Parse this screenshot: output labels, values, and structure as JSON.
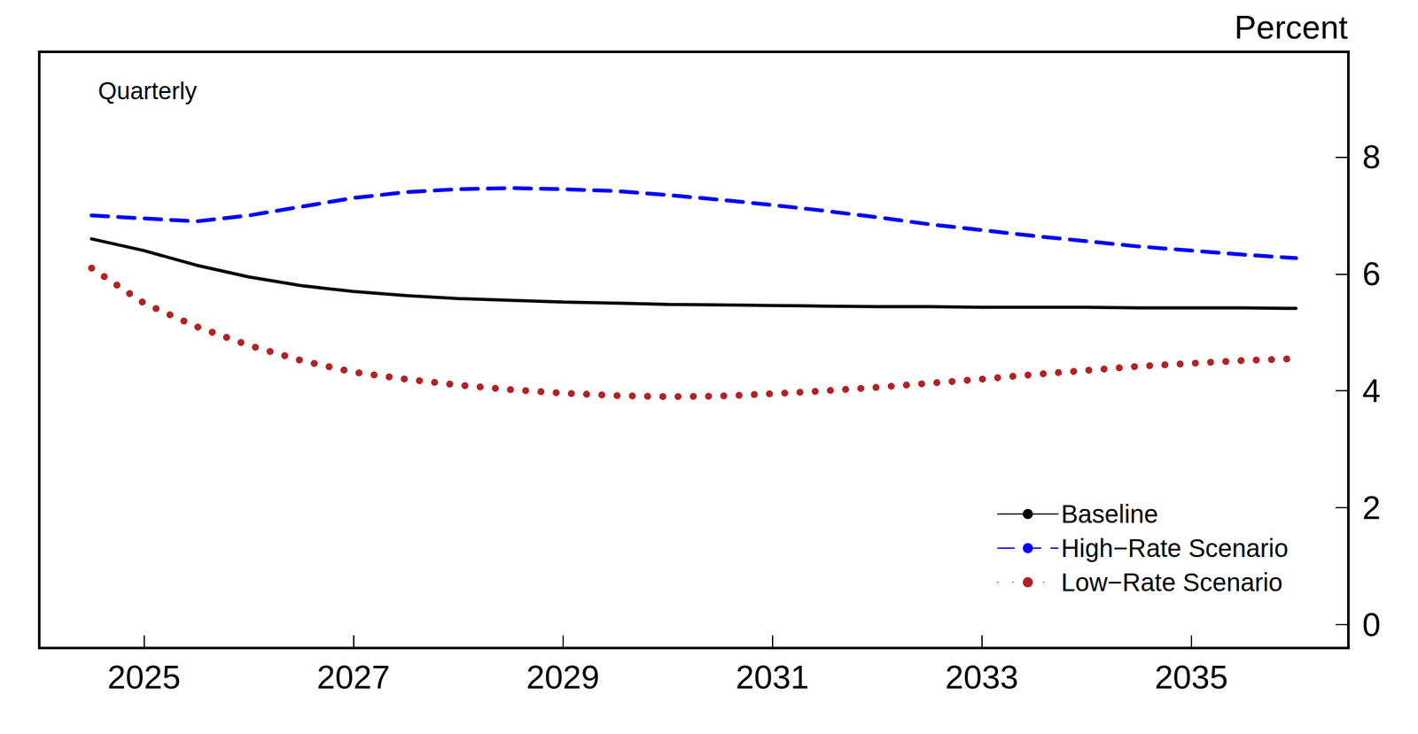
{
  "chart_data": {
    "type": "line",
    "subtitle": "Quarterly",
    "y_label": "Percent",
    "x": [
      2024.5,
      2025.0,
      2025.5,
      2026.0,
      2026.5,
      2027.0,
      2027.5,
      2028.0,
      2028.5,
      2029.0,
      2029.5,
      2030.0,
      2030.5,
      2031.0,
      2031.5,
      2032.0,
      2032.5,
      2033.0,
      2033.5,
      2034.0,
      2034.5,
      2035.0,
      2035.5,
      2036.0
    ],
    "series": [
      {
        "name": "Baseline",
        "color": "#000000",
        "line_style": "solid",
        "values": [
          6.6,
          6.4,
          6.15,
          5.95,
          5.8,
          5.7,
          5.63,
          5.58,
          5.55,
          5.52,
          5.5,
          5.48,
          5.47,
          5.46,
          5.45,
          5.44,
          5.44,
          5.43,
          5.43,
          5.43,
          5.42,
          5.42,
          5.42,
          5.41
        ]
      },
      {
        "name": "High−Rate Scenario",
        "color": "#0000ff",
        "line_style": "dashed",
        "values": [
          7.0,
          6.95,
          6.9,
          7.0,
          7.15,
          7.3,
          7.4,
          7.45,
          7.47,
          7.45,
          7.42,
          7.35,
          7.27,
          7.18,
          7.08,
          6.97,
          6.85,
          6.75,
          6.65,
          6.56,
          6.47,
          6.4,
          6.33,
          6.27
        ]
      },
      {
        "name": "Low−Rate Scenario",
        "color": "#b22222",
        "line_style": "dotted",
        "values": [
          6.1,
          5.5,
          5.1,
          4.78,
          4.52,
          4.32,
          4.2,
          4.1,
          4.02,
          3.96,
          3.92,
          3.9,
          3.91,
          3.95,
          4.0,
          4.06,
          4.13,
          4.2,
          4.28,
          4.35,
          4.42,
          4.47,
          4.52,
          4.55
        ]
      }
    ],
    "xlim": [
      2024,
      2036.5
    ],
    "xticks": [
      2025,
      2027,
      2029,
      2031,
      2033,
      2035
    ],
    "ylim": [
      -0.4,
      9.8
    ],
    "yticks": [
      0,
      2,
      4,
      6,
      8
    ],
    "grid": false,
    "legend": "lower right"
  }
}
